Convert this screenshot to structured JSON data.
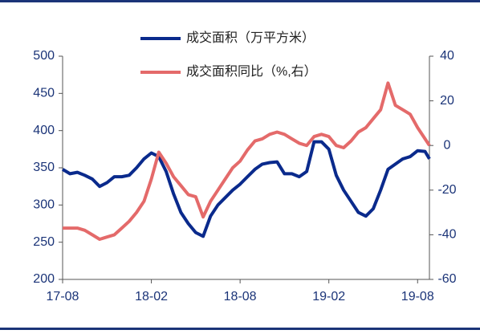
{
  "chart_data": {
    "type": "line",
    "x": [
      0,
      0.5,
      1,
      1.5,
      2,
      2.5,
      3,
      3.5,
      4,
      4.5,
      5,
      5.5,
      6,
      6.5,
      7,
      7.5,
      8,
      8.5,
      9,
      9.5,
      10,
      10.5,
      11,
      11.5,
      12,
      12.5,
      13,
      13.5,
      14,
      14.5,
      15,
      15.5,
      16,
      16.5,
      17,
      17.5,
      18,
      18.5,
      19,
      19.5,
      20,
      20.5,
      21,
      21.5,
      22,
      22.5,
      23,
      23.5,
      24,
      24.5,
      24.8
    ],
    "series": [
      {
        "name": "成交面积（万平方米）",
        "color": "#0a2a8c",
        "axis": "y",
        "values": [
          348,
          342,
          344,
          340,
          335,
          325,
          330,
          338,
          338,
          340,
          350,
          362,
          370,
          365,
          345,
          315,
          290,
          275,
          263,
          258,
          285,
          300,
          310,
          320,
          328,
          338,
          348,
          355,
          357,
          358,
          342,
          342,
          338,
          345,
          385,
          385,
          375,
          340,
          320,
          305,
          290,
          285,
          295,
          320,
          348,
          355,
          362,
          365,
          373,
          372,
          362
        ]
      },
      {
        "name": "成交面积同比（%,右）",
        "color": "#e46a6a",
        "axis": "y2",
        "values": [
          -37,
          -37,
          -37,
          -38,
          -40,
          -42,
          -41,
          -40,
          -37,
          -34,
          -30,
          -25,
          -15,
          -3,
          -8,
          -14,
          -18,
          -22,
          -23,
          -32,
          -25,
          -20,
          -15,
          -10,
          -7,
          -2,
          2,
          3,
          5,
          6,
          5,
          3,
          1,
          0,
          4,
          5,
          4,
          0,
          -1,
          2,
          6,
          8,
          12,
          16,
          28,
          18,
          16,
          14,
          8,
          3,
          0
        ]
      }
    ],
    "xlim": [
      0,
      24.8
    ],
    "xticks": [
      {
        "value": 0,
        "label": "17-08"
      },
      {
        "value": 6,
        "label": "18-02"
      },
      {
        "value": 12,
        "label": "18-08"
      },
      {
        "value": 18,
        "label": "19-02"
      },
      {
        "value": 24,
        "label": "19-08"
      }
    ],
    "ylim": [
      200,
      500
    ],
    "yticks": [
      200,
      250,
      300,
      350,
      400,
      450,
      500
    ],
    "y2lim": [
      -60,
      40
    ],
    "y2ticks": [
      -60,
      -40,
      -20,
      0,
      20,
      40
    ]
  }
}
